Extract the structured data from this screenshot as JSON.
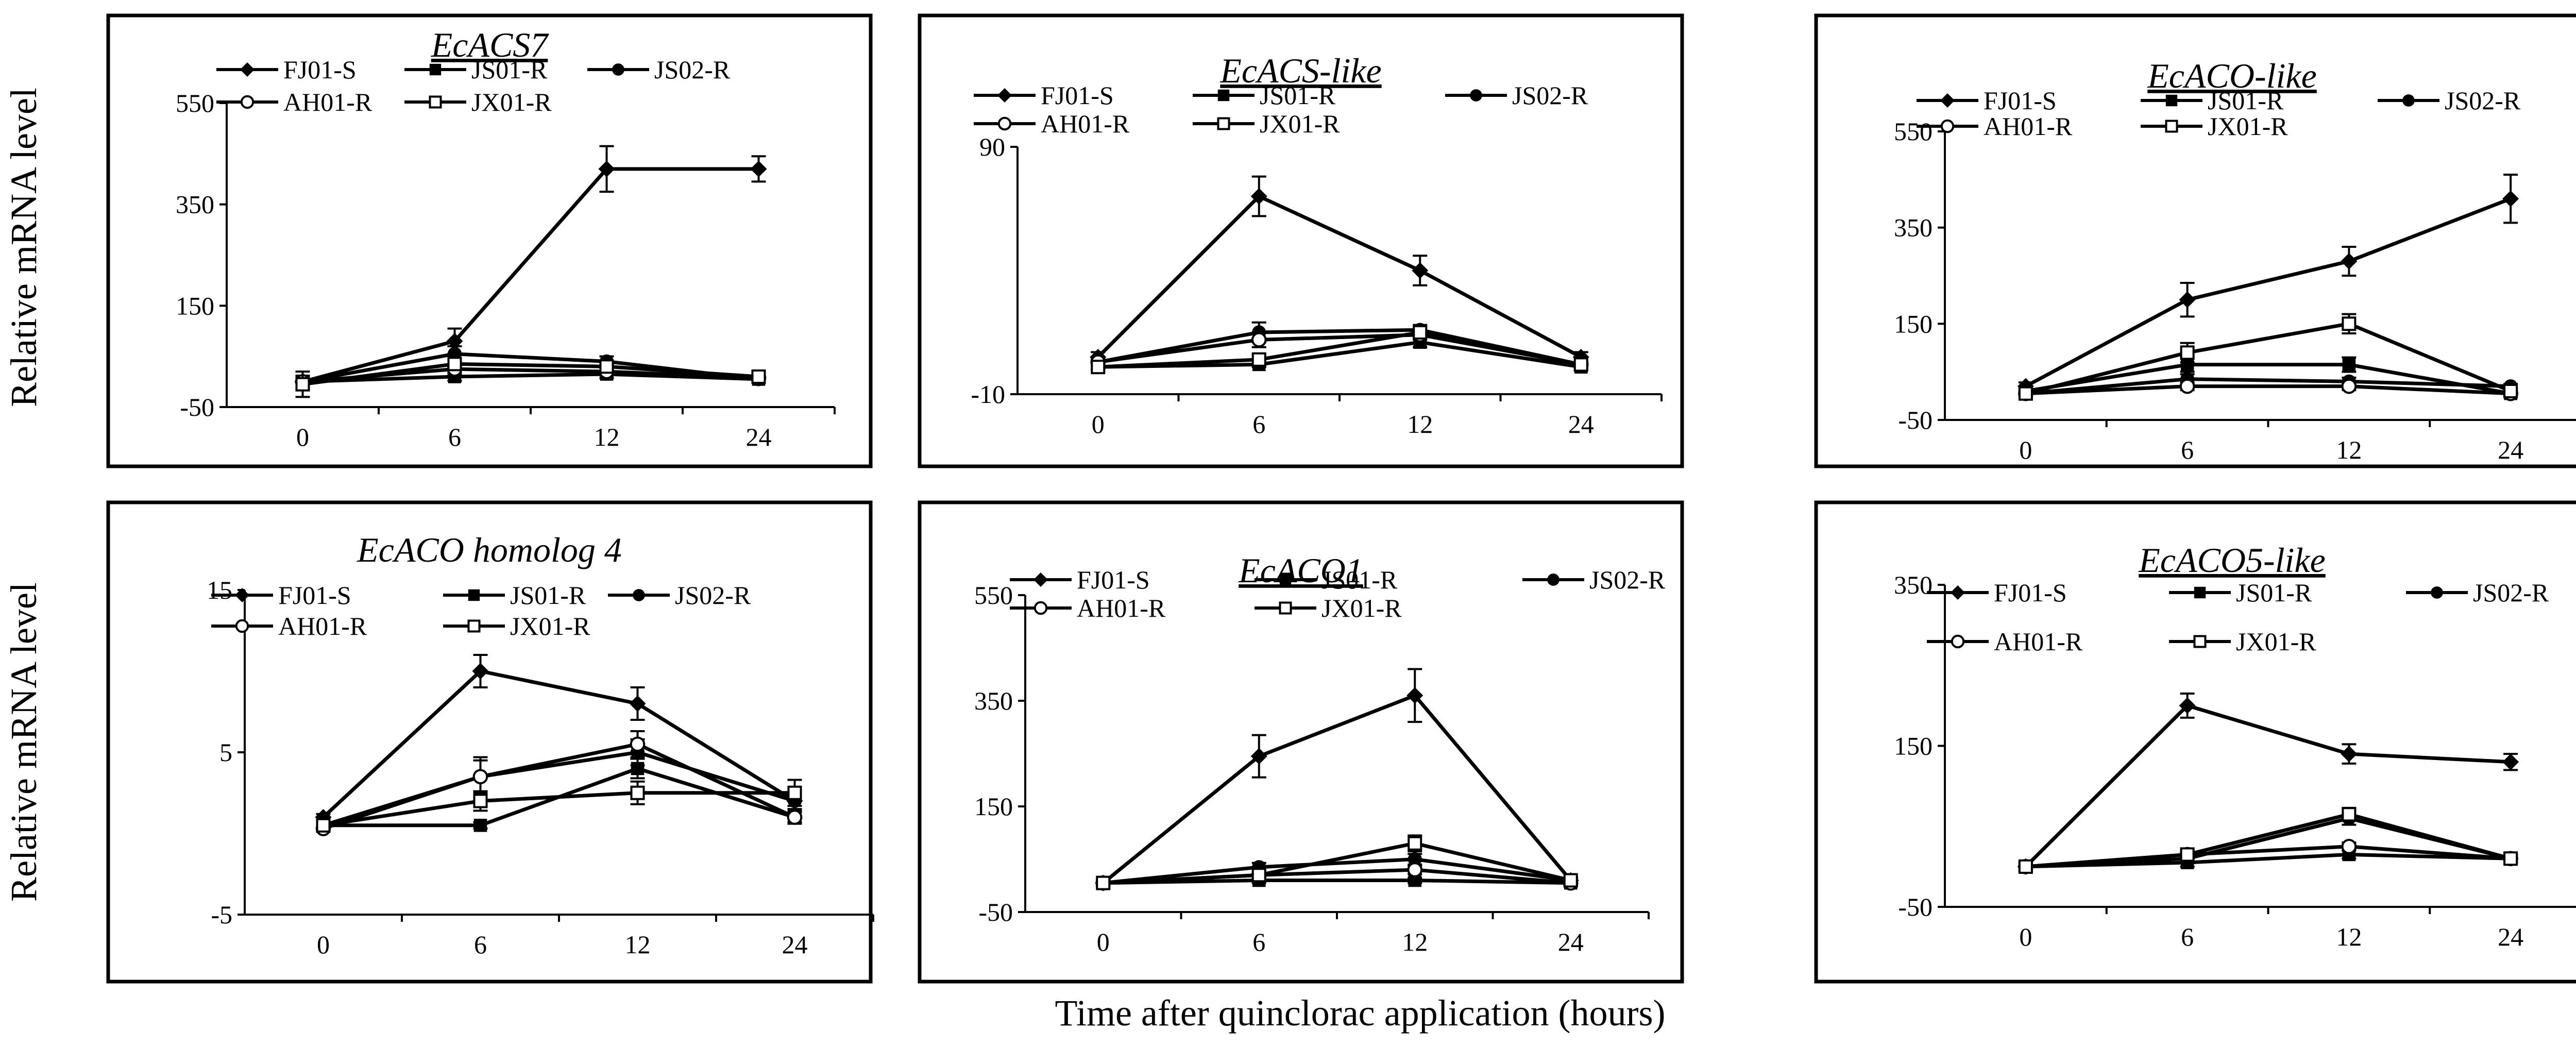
{
  "figure": {
    "ylabel": "Relative mRNA level",
    "xlabel": "Time after quinclorac application (hours)"
  },
  "series_markers": {
    "FJ01-S": "filled-diamond",
    "JS01-R": "filled-square",
    "JS02-R": "filled-circle",
    "AH01-R": "open-circle",
    "JX01-R": "open-square"
  },
  "chart_data": [
    {
      "type": "line",
      "title": "EcACS7",
      "title_underline": true,
      "x": [
        0,
        6,
        12,
        24
      ],
      "ylim": [
        -50,
        550
      ],
      "yticks": [
        -50,
        150,
        350,
        550
      ],
      "series": [
        {
          "name": "FJ01-S",
          "values": [
            0,
            80,
            420,
            420
          ],
          "errors": [
            12,
            25,
            45,
            25
          ]
        },
        {
          "name": "JS01-R",
          "values": [
            0,
            10,
            15,
            5
          ],
          "errors": [
            8,
            8,
            8,
            5
          ]
        },
        {
          "name": "JS02-R",
          "values": [
            0,
            55,
            40,
            5
          ],
          "errors": [
            8,
            15,
            10,
            5
          ]
        },
        {
          "name": "AH01-R",
          "values": [
            0,
            25,
            20,
            8
          ],
          "errors": [
            8,
            10,
            8,
            5
          ]
        },
        {
          "name": "JX01-R",
          "values": [
            -5,
            35,
            30,
            10
          ],
          "errors": [
            25,
            10,
            10,
            5
          ]
        }
      ]
    },
    {
      "type": "line",
      "title": "EcACS-like",
      "title_underline": true,
      "x": [
        0,
        6,
        12,
        24
      ],
      "ylim": [
        -10,
        90
      ],
      "yticks": [
        -10,
        90
      ],
      "series": [
        {
          "name": "FJ01-S",
          "values": [
            5,
            70,
            40,
            5
          ],
          "errors": [
            2,
            8,
            6,
            2
          ]
        },
        {
          "name": "JS01-R",
          "values": [
            1,
            2,
            11,
            1
          ],
          "errors": [
            1,
            1,
            2,
            1
          ]
        },
        {
          "name": "JS02-R",
          "values": [
            3,
            15,
            16,
            2
          ],
          "errors": [
            1,
            4,
            2,
            1
          ]
        },
        {
          "name": "AH01-R",
          "values": [
            3,
            12,
            14,
            2
          ],
          "errors": [
            1,
            3,
            2,
            1
          ]
        },
        {
          "name": "JX01-R",
          "values": [
            1,
            4,
            15,
            2
          ],
          "errors": [
            1,
            2,
            2,
            1
          ]
        }
      ]
    },
    {
      "type": "line",
      "title": "EcACO-like",
      "title_underline": true,
      "x": [
        0,
        6,
        12,
        24
      ],
      "ylim": [
        -50,
        550
      ],
      "yticks": [
        -50,
        150,
        350,
        550
      ],
      "series": [
        {
          "name": "FJ01-S",
          "values": [
            20,
            200,
            280,
            410
          ],
          "errors": [
            8,
            35,
            30,
            50
          ]
        },
        {
          "name": "JS01-R",
          "values": [
            10,
            65,
            65,
            5
          ],
          "errors": [
            5,
            15,
            15,
            5
          ]
        },
        {
          "name": "JS02-R",
          "values": [
            5,
            35,
            30,
            20
          ],
          "errors": [
            5,
            10,
            8,
            5
          ]
        },
        {
          "name": "AH01-R",
          "values": [
            5,
            20,
            20,
            5
          ],
          "errors": [
            5,
            8,
            8,
            5
          ]
        },
        {
          "name": "JX01-R",
          "values": [
            5,
            90,
            150,
            10
          ],
          "errors": [
            5,
            20,
            20,
            5
          ]
        }
      ]
    },
    {
      "type": "line",
      "title": "EcACO homolog 4",
      "title_underline": false,
      "x": [
        0,
        6,
        12,
        24
      ],
      "ylim": [
        -5,
        15
      ],
      "yticks": [
        -5,
        5,
        15
      ],
      "series": [
        {
          "name": "FJ01-S",
          "values": [
            1,
            10,
            8,
            2
          ],
          "errors": [
            0.2,
            1,
            1,
            0.5
          ]
        },
        {
          "name": "JS01-R",
          "values": [
            0.5,
            0.5,
            4,
            1
          ],
          "errors": [
            0.2,
            0.2,
            0.6,
            0.3
          ]
        },
        {
          "name": "JS02-R",
          "values": [
            0.5,
            3.5,
            5,
            2
          ],
          "errors": [
            0.2,
            1,
            0.8,
            0.5
          ]
        },
        {
          "name": "AH01-R",
          "values": [
            0.3,
            3.5,
            5.5,
            1
          ],
          "errors": [
            0.2,
            1.2,
            0.8,
            0.4
          ]
        },
        {
          "name": "JX01-R",
          "values": [
            0.5,
            2,
            2.5,
            2.5
          ],
          "errors": [
            0.2,
            0.6,
            0.7,
            0.8
          ]
        }
      ]
    },
    {
      "type": "line",
      "title": "EcACO1",
      "title_underline": true,
      "x": [
        0,
        6,
        12,
        24
      ],
      "ylim": [
        -50,
        550
      ],
      "yticks": [
        -50,
        150,
        350,
        550
      ],
      "series": [
        {
          "name": "FJ01-S",
          "values": [
            5,
            245,
            360,
            10
          ],
          "errors": [
            5,
            40,
            50,
            5
          ]
        },
        {
          "name": "JS01-R",
          "values": [
            5,
            10,
            10,
            5
          ],
          "errors": [
            5,
            5,
            5,
            5
          ]
        },
        {
          "name": "JS02-R",
          "values": [
            5,
            35,
            50,
            10
          ],
          "errors": [
            5,
            8,
            10,
            5
          ]
        },
        {
          "name": "AH01-R",
          "values": [
            5,
            20,
            30,
            5
          ],
          "errors": [
            5,
            5,
            8,
            5
          ]
        },
        {
          "name": "JX01-R",
          "values": [
            5,
            20,
            80,
            10
          ],
          "errors": [
            5,
            5,
            15,
            5
          ]
        }
      ]
    },
    {
      "type": "line",
      "title": "EcACO5-like",
      "title_underline": true,
      "x": [
        0,
        6,
        12,
        24
      ],
      "ylim": [
        -50,
        350
      ],
      "yticks": [
        -50,
        150,
        350
      ],
      "series": [
        {
          "name": "FJ01-S",
          "values": [
            0,
            200,
            140,
            130
          ],
          "errors": [
            5,
            15,
            12,
            10
          ]
        },
        {
          "name": "JS01-R",
          "values": [
            0,
            5,
            15,
            10
          ],
          "errors": [
            5,
            5,
            5,
            5
          ]
        },
        {
          "name": "JS02-R",
          "values": [
            0,
            10,
            60,
            10
          ],
          "errors": [
            5,
            5,
            8,
            5
          ]
        },
        {
          "name": "AH01-R",
          "values": [
            0,
            15,
            25,
            10
          ],
          "errors": [
            5,
            5,
            5,
            5
          ]
        },
        {
          "name": "JX01-R",
          "values": [
            0,
            15,
            65,
            10
          ],
          "errors": [
            5,
            5,
            8,
            5
          ]
        }
      ]
    }
  ]
}
